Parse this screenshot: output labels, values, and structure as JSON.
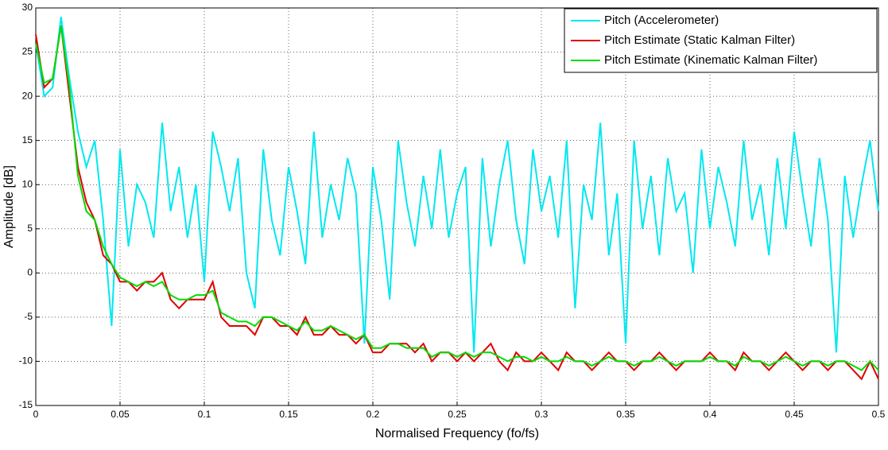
{
  "chart_data": {
    "type": "line",
    "xlabel": "Normalised Frequency (fo/fs)",
    "ylabel": "Amplitude [dB]",
    "x": [
      0,
      0.005,
      0.01,
      0.015,
      0.02,
      0.025,
      0.03,
      0.035,
      0.04,
      0.045,
      0.05,
      0.055,
      0.06,
      0.065,
      0.07,
      0.075,
      0.08,
      0.085,
      0.09,
      0.095,
      0.1,
      0.105,
      0.11,
      0.115,
      0.12,
      0.125,
      0.13,
      0.135,
      0.14,
      0.145,
      0.15,
      0.155,
      0.16,
      0.165,
      0.17,
      0.175,
      0.18,
      0.185,
      0.19,
      0.195,
      0.2,
      0.205,
      0.21,
      0.215,
      0.22,
      0.225,
      0.23,
      0.235,
      0.24,
      0.245,
      0.25,
      0.255,
      0.26,
      0.265,
      0.27,
      0.275,
      0.28,
      0.285,
      0.29,
      0.295,
      0.3,
      0.305,
      0.31,
      0.315,
      0.32,
      0.325,
      0.33,
      0.335,
      0.34,
      0.345,
      0.35,
      0.355,
      0.36,
      0.365,
      0.37,
      0.375,
      0.38,
      0.385,
      0.39,
      0.395,
      0.4,
      0.405,
      0.41,
      0.415,
      0.42,
      0.425,
      0.43,
      0.435,
      0.44,
      0.445,
      0.45,
      0.455,
      0.46,
      0.465,
      0.47,
      0.475,
      0.48,
      0.485,
      0.49,
      0.495,
      0.5
    ],
    "series": [
      {
        "name": "Pitch (Accelerometer)",
        "color": "#00e8f0",
        "values": [
          26,
          20,
          21,
          29,
          22,
          16,
          12,
          15,
          6,
          -6,
          14,
          3,
          10,
          8,
          4,
          17,
          7,
          12,
          4,
          10,
          -1,
          16,
          12,
          7,
          13,
          0,
          -4,
          14,
          6,
          2,
          12,
          7,
          1,
          16,
          4,
          10,
          6,
          13,
          9,
          -8,
          12,
          6,
          -3,
          15,
          8,
          3,
          11,
          5,
          14,
          4,
          9,
          12,
          -9,
          13,
          3,
          10,
          15,
          6,
          1,
          14,
          7,
          11,
          4,
          15,
          -4,
          10,
          6,
          17,
          2,
          9,
          -8,
          15,
          5,
          11,
          2,
          13,
          7,
          9,
          0,
          14,
          5,
          12,
          8,
          3,
          15,
          6,
          10,
          2,
          13,
          5,
          16,
          9,
          3,
          13,
          6,
          -9,
          11,
          4,
          10,
          15,
          7
        ]
      },
      {
        "name": "Pitch Estimate (Static Kalman Filter)",
        "color": "#e00000",
        "values": [
          27,
          21,
          22,
          28,
          20,
          12,
          8,
          6,
          2,
          1,
          -1,
          -1,
          -2,
          -1,
          -1,
          0,
          -3,
          -4,
          -3,
          -3,
          -3,
          -1,
          -5,
          -6,
          -6,
          -6,
          -7,
          -5,
          -5,
          -6,
          -6,
          -7,
          -5,
          -7,
          -7,
          -6,
          -7,
          -7,
          -8,
          -7,
          -9,
          -9,
          -8,
          -8,
          -8,
          -9,
          -8,
          -10,
          -9,
          -9,
          -10,
          -9,
          -10,
          -9,
          -8,
          -10,
          -11,
          -9,
          -10,
          -10,
          -9,
          -10,
          -11,
          -9,
          -10,
          -10,
          -11,
          -10,
          -9,
          -10,
          -10,
          -11,
          -10,
          -10,
          -9,
          -10,
          -11,
          -10,
          -10,
          -10,
          -9,
          -10,
          -10,
          -11,
          -9,
          -10,
          -10,
          -11,
          -10,
          -9,
          -10,
          -11,
          -10,
          -10,
          -11,
          -10,
          -10,
          -11,
          -12,
          -10,
          -12
        ]
      },
      {
        "name": "Pitch Estimate (Kinematic Kalman Filter)",
        "color": "#00dd00",
        "values": [
          26,
          21.5,
          22,
          28,
          21,
          11,
          7,
          6,
          3,
          1,
          -0.5,
          -1,
          -1.5,
          -1,
          -1.5,
          -1,
          -2.5,
          -3,
          -3,
          -2.5,
          -2.5,
          -2,
          -4.5,
          -5,
          -5.5,
          -5.5,
          -6,
          -5,
          -5,
          -5.5,
          -6,
          -6.5,
          -5.5,
          -6.5,
          -6.5,
          -6,
          -6.5,
          -7,
          -7.5,
          -7,
          -8.5,
          -8.5,
          -8,
          -8,
          -8.5,
          -8.5,
          -8.5,
          -9.5,
          -9,
          -9,
          -9.5,
          -9,
          -9.5,
          -9,
          -9,
          -9.5,
          -10,
          -9.5,
          -9.5,
          -10,
          -9.5,
          -10,
          -10,
          -9.5,
          -10,
          -10,
          -10.5,
          -10,
          -9.5,
          -10,
          -10,
          -10.5,
          -10,
          -10,
          -9.5,
          -10,
          -10.5,
          -10,
          -10,
          -10,
          -9.5,
          -10,
          -10,
          -10.5,
          -9.5,
          -10,
          -10,
          -10.5,
          -10,
          -9.5,
          -10,
          -10.5,
          -10,
          -10,
          -10.5,
          -10,
          -10,
          -10.5,
          -11,
          -10,
          -11
        ]
      }
    ],
    "xlim": [
      0,
      0.5
    ],
    "xticks": [
      0,
      0.05,
      0.1,
      0.15,
      0.2,
      0.25,
      0.3,
      0.35,
      0.4,
      0.45,
      0.5
    ],
    "ylim": [
      -15,
      30
    ],
    "yticks": [
      -15,
      -10,
      -5,
      0,
      5,
      10,
      15,
      20,
      25,
      30
    ],
    "grid": true,
    "legend": "top-right"
  }
}
